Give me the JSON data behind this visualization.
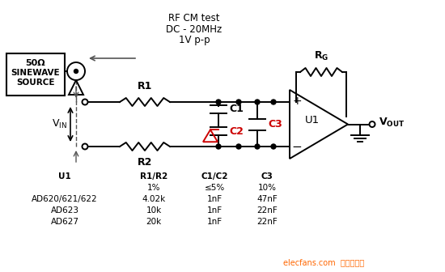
{
  "bg_color": "#ffffff",
  "fig_width": 5.5,
  "fig_height": 3.36,
  "dpi": 100,
  "line_color": "#000000",
  "dash_color": "#555555",
  "cap_c2_color": "#cc0000",
  "c3_label_color": "#cc0000",
  "watermark_color": "#ff6600",
  "watermark_text": "elecfans.com  电子发烧友",
  "rf_text": [
    "RF CM test",
    "DC - 20MHz",
    "1V p-p"
  ],
  "table_headers": [
    "U1",
    "R1/R2",
    "C1/C2",
    "C3"
  ],
  "table_row2": [
    "",
    "1%",
    "≤5%",
    "10%"
  ],
  "table_row3": [
    "AD620/621/622",
    "4.02k",
    "1nF",
    "47nF"
  ],
  "table_row4": [
    "AD623",
    "10k",
    "1nF",
    "22nF"
  ],
  "table_row5": [
    "AD627",
    "20k",
    "1nF",
    "22nF"
  ]
}
